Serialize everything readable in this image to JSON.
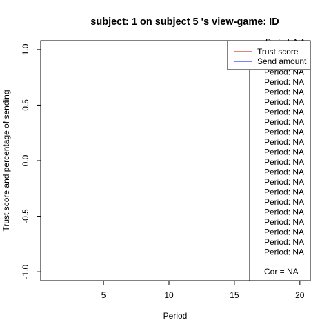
{
  "chart_data": {
    "type": "line",
    "title": "subject:  1  on subject  5 's view-game:  ID",
    "xlabel": "Period",
    "ylabel": "Trust score and percentage of sending",
    "xlim": [
      0.2,
      20.8
    ],
    "ylim": [
      -1.08,
      1.08
    ],
    "x_ticks": [
      5,
      10,
      15,
      20
    ],
    "x_tick_labels": [
      "5",
      "10",
      "15",
      "20"
    ],
    "y_ticks": [
      -1.0,
      -0.5,
      0.0,
      0.5,
      1.0
    ],
    "y_tick_labels": [
      "-1.0",
      "-0.5",
      "0.0",
      "0.5",
      "1.0"
    ],
    "grid": false,
    "series": [
      {
        "name": "Trust score",
        "color": "#cc0000",
        "values": []
      },
      {
        "name": "Send amount",
        "color": "#0000ff",
        "values": []
      }
    ],
    "legend": {
      "position": "top-right",
      "entries": [
        {
          "label": "Trust score",
          "color": "#cc0000"
        },
        {
          "label": "Send amount",
          "color": "#0000ff"
        }
      ]
    },
    "annotation_box": {
      "period_labels": [
        "Period:  NA",
        "Period:  NA",
        "Period:  NA",
        "Period:  NA",
        "Period:  NA",
        "Period:  NA",
        "Period:  NA",
        "Period:  NA",
        "Period:  NA",
        "Period:  NA",
        "Period:  NA",
        "Period:  NA",
        "Period:  NA",
        "Period:  NA",
        "Period:  NA",
        "Period:  NA",
        "Period:  NA",
        "Period:  NA",
        "Period:  NA",
        "Period:  NA",
        "Period:  NA",
        "Period:  NA"
      ],
      "cor_label": "Cor =  NA"
    }
  }
}
